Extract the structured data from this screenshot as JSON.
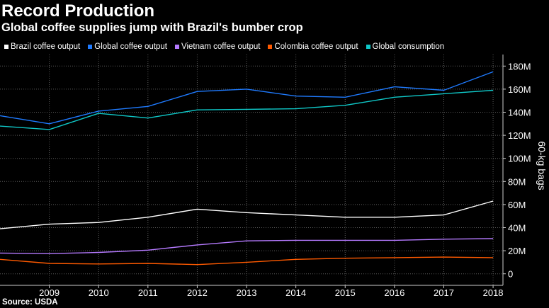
{
  "title": "Record Production",
  "subtitle": "Global coffee supplies jump with Brazil's bumber crop",
  "source": "Source: USDA",
  "chart_data": {
    "type": "line",
    "title": "Record Production",
    "subtitle": "Global coffee supplies jump with Brazil's bumber crop",
    "xlabel": "",
    "ylabel": "60-kg bags",
    "x": [
      2008,
      2009,
      2010,
      2011,
      2012,
      2013,
      2014,
      2015,
      2016,
      2017,
      2018
    ],
    "x_tick_labels": [
      "2009",
      "2010",
      "2011",
      "2012",
      "2013",
      "2014",
      "2015",
      "2016",
      "2017",
      "2018"
    ],
    "y_tick_labels": [
      "0",
      "20M",
      "40M",
      "60M",
      "80M",
      "100M",
      "120M",
      "140M",
      "160M",
      "180M"
    ],
    "xlim": [
      2008,
      2018.2
    ],
    "ylim": [
      -10,
      190
    ],
    "y_axis_position": "right",
    "grid": "horizontal dotted",
    "legend_placement": "top-left",
    "series": [
      {
        "name": "Brazil coffee output",
        "color": "#ffffff",
        "values": [
          39,
          43,
          44.5,
          49,
          56,
          53,
          51,
          49,
          49,
          51,
          63
        ]
      },
      {
        "name": "Global coffee output",
        "color": "#1f7bff",
        "values": [
          137,
          130,
          141,
          145,
          158,
          160,
          154,
          153,
          162,
          159,
          175
        ]
      },
      {
        "name": "Vietnam coffee output",
        "color": "#b57aff",
        "values": [
          18,
          17.5,
          18.5,
          20.5,
          25,
          28.5,
          29,
          29,
          29,
          30,
          30.5
        ]
      },
      {
        "name": "Colombia coffee output",
        "color": "#ff5a00",
        "values": [
          12.5,
          9,
          8.5,
          9,
          8,
          10,
          12.5,
          13.5,
          14,
          14.5,
          14
        ]
      },
      {
        "name": "Global consumption",
        "color": "#0fc8c8",
        "values": [
          128,
          125,
          139,
          135,
          142,
          142.5,
          143,
          146,
          153,
          156,
          159
        ]
      }
    ]
  }
}
